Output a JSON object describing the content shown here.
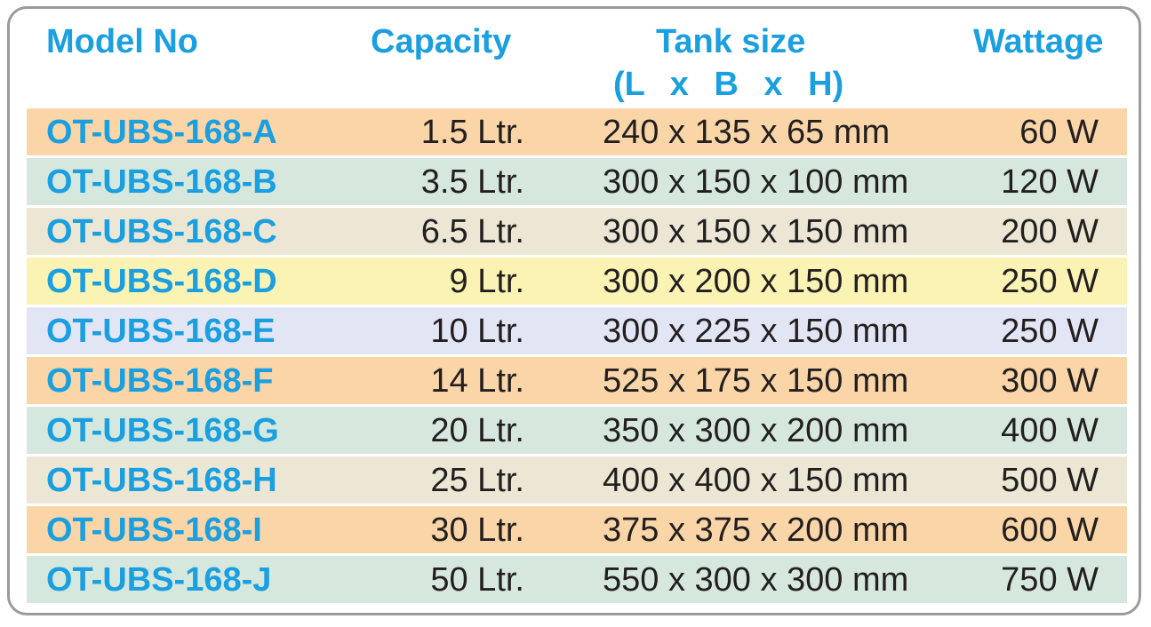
{
  "header": {
    "model_no": "Model No",
    "capacity": "Capacity",
    "tank_size": "Tank size",
    "tank_size_sub": "(L x B x H)",
    "wattage": "Wattage"
  },
  "row_colors": [
    "#f9d5a7",
    "#d6e8dd",
    "#ebe7d4",
    "#faf3b4",
    "#e2e5f4",
    "#f9d5a7",
    "#d6e8dd",
    "#ebe7d4",
    "#f9d5a7",
    "#d6e8dd"
  ],
  "rows": [
    {
      "model": "OT-UBS-168-A",
      "capacity": "1.5 Ltr.",
      "tank": "240 x 135 x 65 mm",
      "wattage": "60 W"
    },
    {
      "model": "OT-UBS-168-B",
      "capacity": "3.5 Ltr.",
      "tank": "300 x 150 x 100 mm",
      "wattage": "120 W"
    },
    {
      "model": "OT-UBS-168-C",
      "capacity": "6.5 Ltr.",
      "tank": "300 x 150 x 150 mm",
      "wattage": "200 W"
    },
    {
      "model": "OT-UBS-168-D",
      "capacity": "9 Ltr.",
      "tank": "300 x 200 x 150 mm",
      "wattage": "250 W"
    },
    {
      "model": "OT-UBS-168-E",
      "capacity": "10 Ltr.",
      "tank": "300 x 225 x 150 mm",
      "wattage": "250 W"
    },
    {
      "model": "OT-UBS-168-F",
      "capacity": "14 Ltr.",
      "tank": "525 x 175 x 150 mm",
      "wattage": "300 W"
    },
    {
      "model": "OT-UBS-168-G",
      "capacity": "20 Ltr.",
      "tank": "350 x 300 x 200 mm",
      "wattage": "400 W"
    },
    {
      "model": "OT-UBS-168-H",
      "capacity": "25 Ltr.",
      "tank": "400 x 400 x 150 mm",
      "wattage": "500 W"
    },
    {
      "model": "OT-UBS-168-I",
      "capacity": "30 Ltr.",
      "tank": "375 x 375 x 200 mm",
      "wattage": "600 W"
    },
    {
      "model": "OT-UBS-168-J",
      "capacity": "50 Ltr.",
      "tank": "550 x 300 x 300 mm",
      "wattage": "750 W"
    }
  ]
}
